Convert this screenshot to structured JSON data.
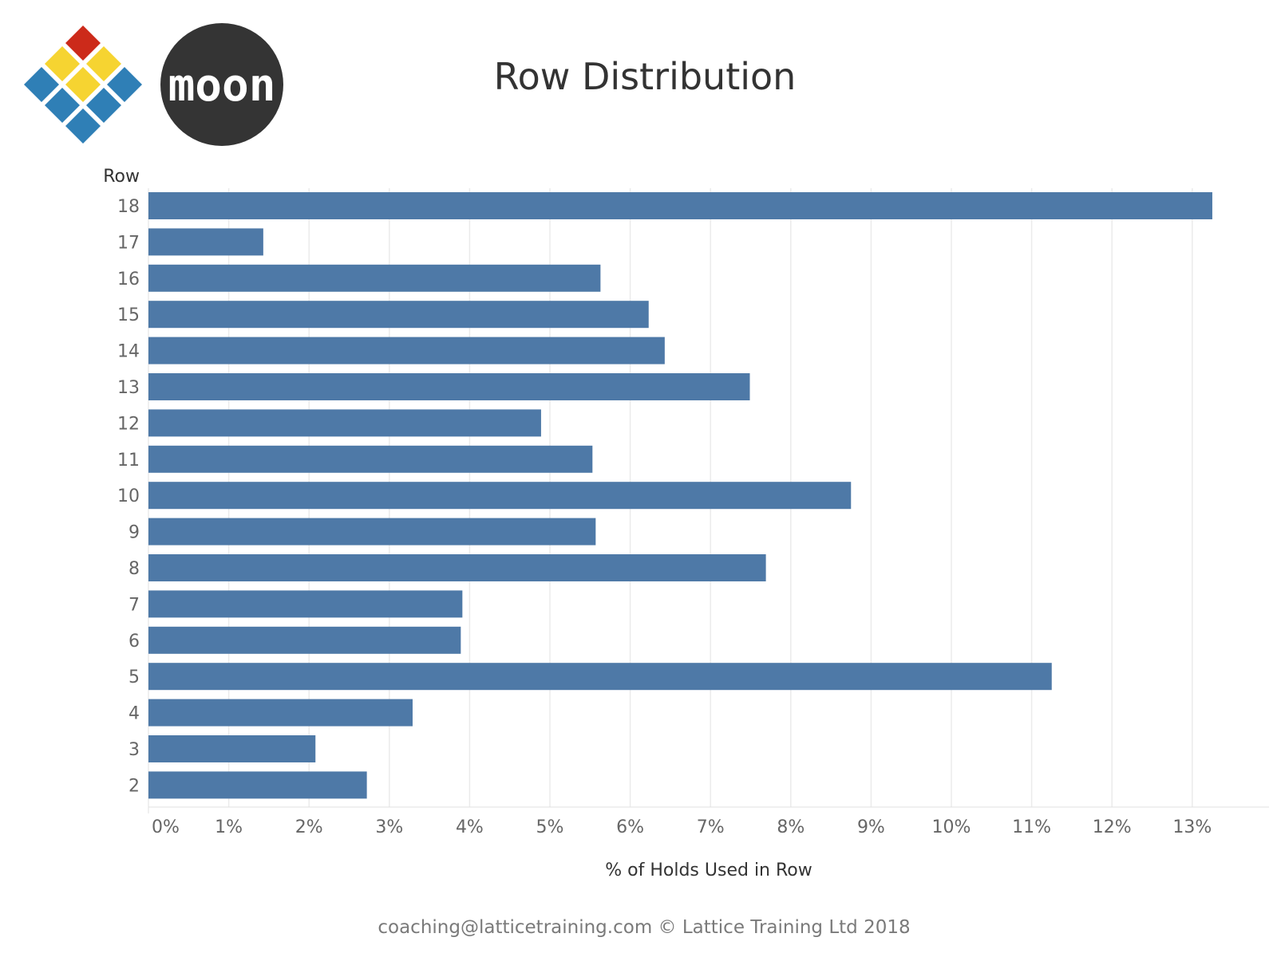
{
  "header": {
    "moon_logo_text": "moon"
  },
  "chart_data": {
    "type": "bar",
    "orientation": "horizontal",
    "title": "Row Distribution",
    "ylabel": "Row",
    "xlabel": "% of Holds Used in Row",
    "categories": [
      "18",
      "17",
      "16",
      "15",
      "14",
      "13",
      "12",
      "11",
      "10",
      "9",
      "8",
      "7",
      "6",
      "5",
      "4",
      "3",
      "2"
    ],
    "values": [
      13.25,
      1.43,
      5.63,
      6.23,
      6.43,
      7.49,
      4.89,
      5.53,
      8.75,
      5.57,
      7.69,
      3.91,
      3.89,
      11.25,
      3.29,
      2.08,
      2.72
    ],
    "unit": "%",
    "xlim": [
      0,
      13.9
    ],
    "x_ticks": [
      0,
      1,
      2,
      3,
      4,
      5,
      6,
      7,
      8,
      9,
      10,
      11,
      12,
      13
    ],
    "x_tick_labels": [
      "0%",
      "1%",
      "2%",
      "3%",
      "4%",
      "5%",
      "6%",
      "7%",
      "8%",
      "9%",
      "10%",
      "11%",
      "12%",
      "13%"
    ],
    "grid": true,
    "bar_color": "#4e79a7"
  },
  "footer": {
    "text": "coaching@latticetraining.com © Lattice Training Ltd 2018"
  },
  "colors": {
    "bar": "#4e79a7",
    "grid": "#ebebeb",
    "logo_red": "#cc2a1a",
    "logo_yellow": "#f6d431",
    "logo_blue": "#2f7fb6",
    "moon_circle": "#343434"
  }
}
